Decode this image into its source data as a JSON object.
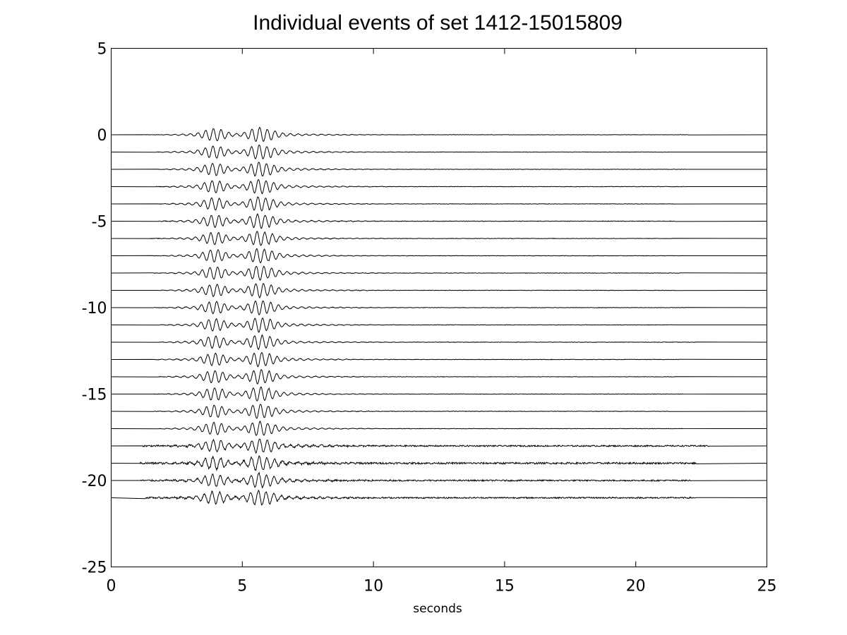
{
  "chart_data": {
    "type": "line",
    "title": "Individual events of set 1412-15015809",
    "xlabel": "seconds",
    "ylabel": "",
    "xlim": [
      0,
      25
    ],
    "ylim": [
      -25,
      5
    ],
    "xticks": [
      0,
      5,
      10,
      15,
      20,
      25
    ],
    "yticks": [
      5,
      0,
      -5,
      -10,
      -15,
      -20,
      -25
    ],
    "grid": false,
    "legend": "none",
    "line_color": "#000000",
    "series_description": "22 stacked seismic waveform traces, one per event, offset vertically by -1 each",
    "series": [
      {
        "offset": 0,
        "start": 1.2,
        "end": 22.0,
        "noise": 0.02
      },
      {
        "offset": -1,
        "start": 1.7,
        "end": 21.3,
        "noise": 0.02
      },
      {
        "offset": -2,
        "start": 1.8,
        "end": 21.9,
        "noise": 0.02
      },
      {
        "offset": -3,
        "start": 1.7,
        "end": 21.9,
        "noise": 0.025
      },
      {
        "offset": -4,
        "start": 1.8,
        "end": 21.5,
        "noise": 0.025
      },
      {
        "offset": -5,
        "start": 1.8,
        "end": 21.5,
        "noise": 0.03
      },
      {
        "offset": -6,
        "start": 1.5,
        "end": 21.4,
        "noise": 0.025
      },
      {
        "offset": -7,
        "start": 1.6,
        "end": 21.8,
        "noise": 0.025
      },
      {
        "offset": -8,
        "start": 1.6,
        "end": 21.7,
        "noise": 0.025
      },
      {
        "offset": -9,
        "start": 1.8,
        "end": 21.5,
        "noise": 0.025
      },
      {
        "offset": -10,
        "start": 1.6,
        "end": 21.9,
        "noise": 0.025
      },
      {
        "offset": -11,
        "start": 1.8,
        "end": 21.4,
        "noise": 0.025
      },
      {
        "offset": -12,
        "start": 1.8,
        "end": 22.3,
        "noise": 0.025
      },
      {
        "offset": -13,
        "start": 1.6,
        "end": 21.7,
        "noise": 0.025
      },
      {
        "offset": -14,
        "start": 1.8,
        "end": 21.5,
        "noise": 0.025
      },
      {
        "offset": -15,
        "start": 1.6,
        "end": 21.8,
        "noise": 0.025
      },
      {
        "offset": -16,
        "start": 1.6,
        "end": 21.3,
        "noise": 0.025
      },
      {
        "offset": -17,
        "start": 1.8,
        "end": 21.8,
        "noise": 0.025
      },
      {
        "offset": -18,
        "start": 1.2,
        "end": 22.8,
        "noise": 0.08
      },
      {
        "offset": -19,
        "start": 1.1,
        "end": 22.3,
        "noise": 0.1
      },
      {
        "offset": -20,
        "start": 1.1,
        "end": 22.1,
        "noise": 0.08
      },
      {
        "offset": -21,
        "start": 1.3,
        "end": 22.3,
        "noise": 0.08
      }
    ]
  }
}
